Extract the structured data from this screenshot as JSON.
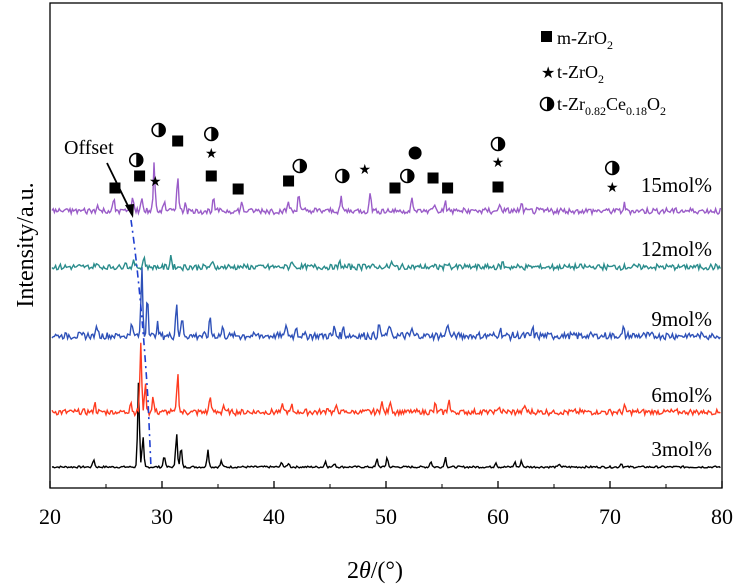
{
  "chart_data": {
    "type": "line",
    "xlabel_prefix": "2",
    "xlabel_var": "θ",
    "xlabel_suffix": "/(°)",
    "ylabel": "Intensity/a.u.",
    "xlim": [
      20,
      80
    ],
    "x_ticks": [
      "20",
      "30",
      "40",
      "50",
      "60",
      "70",
      "80"
    ],
    "annotation": "Offset",
    "legend": [
      {
        "symbol": "square",
        "name_main": "m-ZrO",
        "sub1": "2",
        "mid": "",
        "sub2": "",
        "tail": ""
      },
      {
        "symbol": "star",
        "name_main": "t-ZrO",
        "sub1": "2",
        "mid": "",
        "sub2": "",
        "tail": ""
      },
      {
        "symbol": "halfcircle",
        "name_main": "t-Zr",
        "sub1": "0.82",
        "mid": "Ce",
        "sub2": "0.18",
        "tail": "O",
        "sub3": "2"
      }
    ],
    "series": [
      {
        "name": "3mol%",
        "color": "#000000",
        "baseline": 0,
        "peaks": [
          [
            23.9,
            8
          ],
          [
            27.9,
            85
          ],
          [
            28.3,
            30
          ],
          [
            30.2,
            12
          ],
          [
            31.3,
            35
          ],
          [
            31.7,
            20
          ],
          [
            34.1,
            18
          ],
          [
            35.3,
            6
          ],
          [
            40.7,
            5
          ],
          [
            41.3,
            4
          ],
          [
            44.6,
            6
          ],
          [
            45.4,
            4
          ],
          [
            49.2,
            8
          ],
          [
            50.1,
            10
          ],
          [
            54.0,
            6
          ],
          [
            55.3,
            10
          ],
          [
            59.8,
            5
          ],
          [
            61.5,
            5
          ],
          [
            62.1,
            6
          ],
          [
            65.5,
            3
          ],
          [
            71.0,
            4
          ]
        ]
      },
      {
        "name": "6mol%",
        "color": "#ff3b1f",
        "baseline": 0,
        "peaks": [
          [
            24.0,
            10
          ],
          [
            27.2,
            12
          ],
          [
            28.1,
            72
          ],
          [
            28.5,
            30
          ],
          [
            29.2,
            16
          ],
          [
            31.4,
            42
          ],
          [
            34.3,
            18
          ],
          [
            35.5,
            7
          ],
          [
            40.8,
            8
          ],
          [
            41.6,
            6
          ],
          [
            44.8,
            6
          ],
          [
            45.6,
            6
          ],
          [
            49.6,
            12
          ],
          [
            50.4,
            13
          ],
          [
            54.4,
            8
          ],
          [
            55.6,
            14
          ],
          [
            60.1,
            7
          ],
          [
            62.4,
            8
          ],
          [
            71.3,
            6
          ]
        ]
      },
      {
        "name": "9mol%",
        "color": "#2e51b8",
        "baseline": 0,
        "peaks": [
          [
            24.2,
            12
          ],
          [
            27.3,
            18
          ],
          [
            28.2,
            80
          ],
          [
            28.7,
            50
          ],
          [
            29.6,
            14
          ],
          [
            31.3,
            40
          ],
          [
            31.8,
            22
          ],
          [
            34.3,
            22
          ],
          [
            35.4,
            10
          ],
          [
            41.1,
            14
          ],
          [
            42.0,
            12
          ],
          [
            45.4,
            10
          ],
          [
            46.2,
            10
          ],
          [
            49.4,
            14
          ],
          [
            50.3,
            14
          ],
          [
            52.3,
            8
          ],
          [
            55.5,
            18
          ],
          [
            60.2,
            10
          ],
          [
            63.1,
            8
          ],
          [
            71.2,
            8
          ]
        ]
      },
      {
        "name": "12mol%",
        "color": "#2a8c8c",
        "baseline": 0,
        "peaks": [
          [
            24.1,
            8
          ],
          [
            26.7,
            12
          ],
          [
            27.5,
            10
          ],
          [
            28.4,
            20
          ],
          [
            30.8,
            20
          ],
          [
            34.5,
            8
          ],
          [
            41.6,
            12
          ],
          [
            45.9,
            8
          ],
          [
            48.1,
            10
          ],
          [
            50.5,
            8
          ],
          [
            55.5,
            10
          ],
          [
            60.4,
            8
          ]
        ]
      },
      {
        "name": "15mol%",
        "color": "#9a5cc8",
        "baseline": 0,
        "peaks": [
          [
            24.2,
            8
          ],
          [
            25.7,
            14
          ],
          [
            27.4,
            20
          ],
          [
            28.2,
            18
          ],
          [
            29.3,
            60
          ],
          [
            30.2,
            14
          ],
          [
            31.4,
            48
          ],
          [
            32.1,
            12
          ],
          [
            34.6,
            14
          ],
          [
            37.1,
            10
          ],
          [
            41.3,
            12
          ],
          [
            42.2,
            24
          ],
          [
            46.0,
            16
          ],
          [
            48.6,
            24
          ],
          [
            52.3,
            14
          ],
          [
            54.3,
            10
          ],
          [
            55.3,
            12
          ],
          [
            60.2,
            10
          ],
          [
            62.1,
            8
          ],
          [
            71.3,
            8
          ]
        ]
      }
    ]
  }
}
